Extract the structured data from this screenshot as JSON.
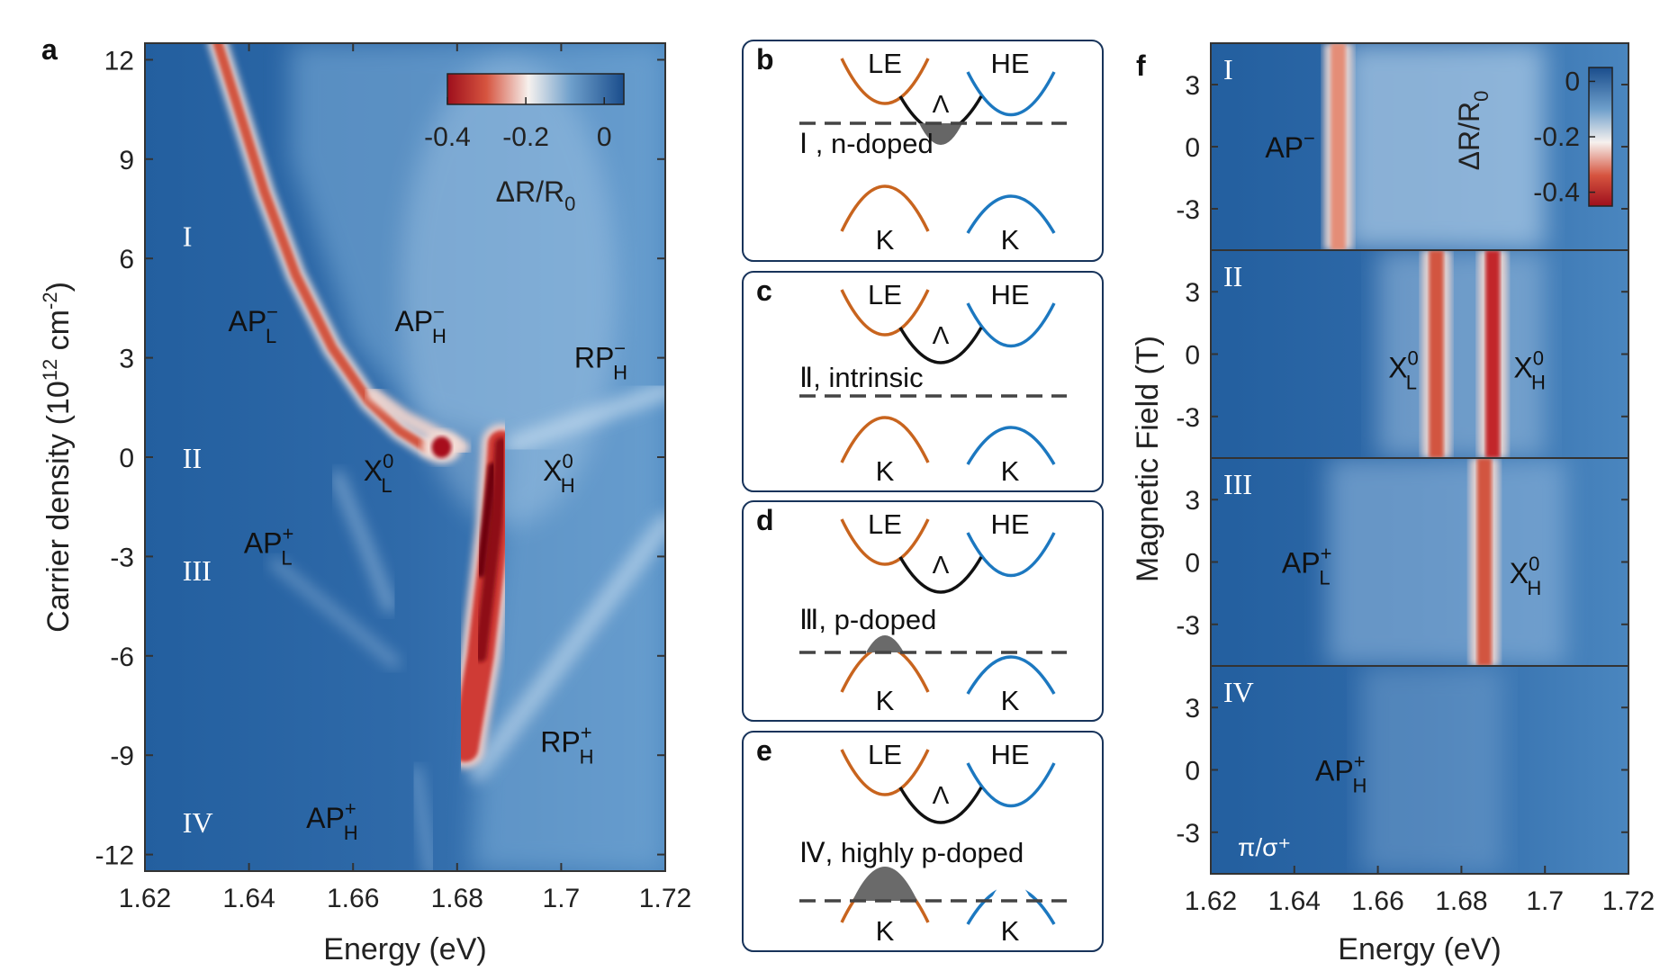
{
  "panel_labels": {
    "a": "a",
    "b": "b",
    "c": "c",
    "d": "d",
    "e": "e",
    "f": "f"
  },
  "colors": {
    "red": "#b0101e",
    "white": "#f3f3f3",
    "blue": "#1d5b99",
    "bg": "#3c78b6",
    "orange": "#c8641e",
    "blue_band": "#1c78c0",
    "black": "#111111"
  },
  "chart_data": [
    {
      "type": "heatmap",
      "id": "panel_a",
      "xlabel": "Energy (eV)",
      "ylabel_main": "Carrier density (10",
      "ylabel_sup1": "12",
      "ylabel_mid": " cm",
      "ylabel_sup2": "-2",
      "ylabel_end": ")",
      "xlim": [
        1.62,
        1.72
      ],
      "ylim": [
        -12.5,
        12.5
      ],
      "xticks": [
        1.62,
        1.64,
        1.66,
        1.68,
        1.7,
        1.72
      ],
      "xtick_labels": [
        "1.62",
        "1.64",
        "1.66",
        "1.68",
        "1.7",
        "1.72"
      ],
      "yticks": [
        12,
        9,
        6,
        3,
        0,
        -3,
        -6,
        -9,
        -12
      ],
      "ytick_labels": [
        "12",
        "9",
        "6",
        "3",
        "0",
        "-3",
        "-6",
        "-9",
        "-12"
      ],
      "colorbar": {
        "range": [
          -0.4,
          0.05
        ],
        "ticks": [
          -0.4,
          -0.2,
          0
        ],
        "tick_labels": [
          "-0.4",
          "-0.2",
          "0"
        ],
        "label_main": "ΔR/R",
        "label_sub": "0"
      },
      "regions": [
        {
          "label": "I",
          "y": 6.7,
          "x": 1.6255
        },
        {
          "label": "II",
          "y": 0,
          "x": 1.6255
        },
        {
          "label": "III",
          "y": -3.4,
          "x": 1.6255
        },
        {
          "label": "IV",
          "y": -11,
          "x": 1.6255
        }
      ],
      "annotations": [
        {
          "main": "AP",
          "sup": "−",
          "sub": "L",
          "x": 1.636,
          "y": 3.8
        },
        {
          "main": "AP",
          "sup": "−",
          "sub": "H",
          "x": 1.668,
          "y": 3.8
        },
        {
          "main": "RP",
          "sup": "−",
          "sub": "H",
          "x": 1.7025,
          "y": 2.7
        },
        {
          "main": "X",
          "sup": "0",
          "sub": "L",
          "x": 1.662,
          "y": -0.7
        },
        {
          "main": "X",
          "sup": "0",
          "sub": "H",
          "x": 1.6965,
          "y": -0.7
        },
        {
          "main": "AP",
          "sup": "+",
          "sub": "L",
          "x": 1.639,
          "y": -2.9
        },
        {
          "main": "RP",
          "sup": "+",
          "sub": "H",
          "x": 1.696,
          "y": -8.9
        },
        {
          "main": "AP",
          "sup": "+",
          "sub": "H",
          "x": 1.651,
          "y": -11.2
        }
      ],
      "features": {
        "AP_L_minus_curve": {
          "energy": [
            1.634,
            1.638,
            1.643,
            1.649,
            1.656,
            1.663,
            1.669,
            1.674
          ],
          "density": [
            12.5,
            10.5,
            8,
            5.5,
            3.3,
            1.7,
            0.8,
            0.3
          ]
        },
        "AP_H_minus_curve": {
          "energy": [
            1.664,
            1.67,
            1.676,
            1.681
          ],
          "density": [
            1.9,
            1.2,
            0.7,
            0.3
          ]
        },
        "X_L_0_peak": {
          "energy": 1.677,
          "density": 0.3
        },
        "X_H_0_stripe": {
          "energy": [
            1.6885,
            1.6875,
            1.6845,
            1.6815
          ],
          "density": [
            0.4,
            -2,
            -6,
            -8.8
          ]
        },
        "RP_H_minus_band": {
          "energy": [
            1.691,
            1.72
          ],
          "density": [
            0.4,
            2
          ]
        },
        "RP_H_plus_band": {
          "energy": [
            1.684,
            1.72
          ],
          "density": [
            -9.5,
            -2
          ]
        }
      }
    },
    {
      "type": "heatmap",
      "id": "panel_f",
      "xlabel": "Energy (eV)",
      "ylabel": "Magnetic Field (T)",
      "xlim": [
        1.62,
        1.72
      ],
      "ylim": [
        -5,
        5
      ],
      "xticks": [
        1.62,
        1.64,
        1.66,
        1.68,
        1.7,
        1.72
      ],
      "xtick_labels": [
        "1.62",
        "1.64",
        "1.66",
        "1.68",
        "1.7",
        "1.72"
      ],
      "yticks": [
        3,
        0,
        -3
      ],
      "ytick_labels": [
        "3",
        "0",
        "-3"
      ],
      "colorbar": {
        "range": [
          -0.45,
          0.05
        ],
        "ticks": [
          0,
          -0.2,
          -0.4
        ],
        "tick_labels": [
          "0",
          "-0.2",
          "-0.4"
        ],
        "label_main": "ΔR/R",
        "label_sub": "0"
      },
      "subpanels": [
        {
          "region": "I",
          "lines": [
            {
              "energy": 1.6505,
              "strength": 0.55
            }
          ],
          "labels": [
            {
              "main": "AP",
              "sup": "−",
              "sub": "",
              "x": 1.633,
              "y": 0
            }
          ]
        },
        {
          "region": "II",
          "lines": [
            {
              "energy": 1.674,
              "strength": 0.75
            },
            {
              "energy": 1.6875,
              "strength": 1.0
            }
          ],
          "labels": [
            {
              "main": "X",
              "sup": "0",
              "sub": "L",
              "x": 1.6625,
              "y": -0.6
            },
            {
              "main": "X",
              "sup": "0",
              "sub": "H",
              "x": 1.6925,
              "y": -0.6
            }
          ]
        },
        {
          "region": "III",
          "lines": [
            {
              "energy": 1.6855,
              "strength": 0.9
            }
          ],
          "labels": [
            {
              "main": "AP",
              "sup": "+",
              "sub": "L",
              "x": 1.637,
              "y": 0
            },
            {
              "main": "X",
              "sup": "0",
              "sub": "H",
              "x": 1.6915,
              "y": -0.5
            }
          ]
        },
        {
          "region": "IV",
          "lines": [],
          "labels": [
            {
              "main": "AP",
              "sup": "+",
              "sub": "H",
              "x": 1.645,
              "y": 0
            }
          ],
          "note": "π/σ⁺"
        }
      ]
    }
  ],
  "schematics": [
    {
      "panel": "b",
      "left_label": "LE",
      "right_label": "HE",
      "lambda": "Λ",
      "k_left": "K",
      "k_right": "K",
      "caption": "Ⅰ , n-doped",
      "fermi": "conduction"
    },
    {
      "panel": "c",
      "left_label": "LE",
      "right_label": "HE",
      "lambda": "Λ",
      "k_left": "K",
      "k_right": "K",
      "caption": "Ⅱ, intrinsic",
      "fermi": "gap"
    },
    {
      "panel": "d",
      "left_label": "LE",
      "right_label": "HE",
      "lambda": "Λ",
      "k_left": "K",
      "k_right": "K",
      "caption": "Ⅲ, p-doped",
      "fermi": "valence"
    },
    {
      "panel": "e",
      "left_label": "LE",
      "right_label": "HE",
      "lambda": "Λ",
      "k_left": "K",
      "k_right": "K",
      "caption": "Ⅳ, highly p-doped",
      "fermi": "deep-valence"
    }
  ]
}
